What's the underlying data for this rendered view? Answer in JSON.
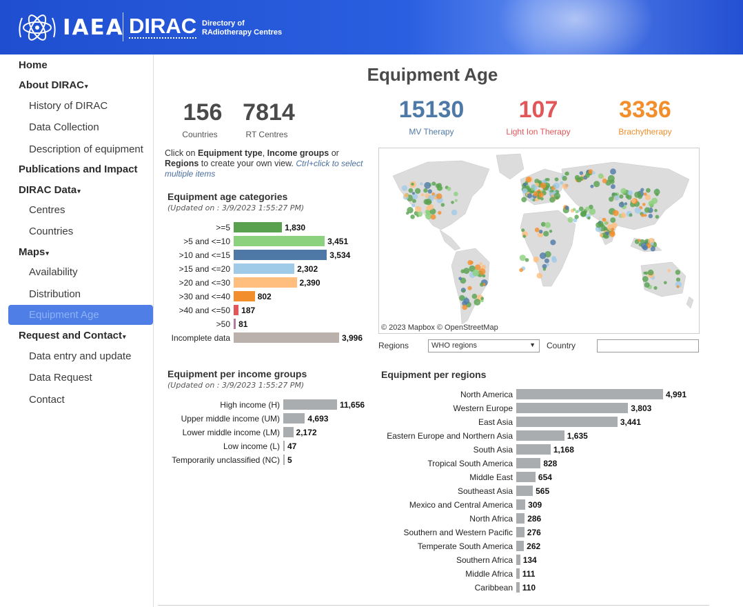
{
  "header": {
    "iaea": "IAEA",
    "dirac": "DIRAC",
    "tagline_1": "Directory of",
    "tagline_2": "RAdiotherapy Centres"
  },
  "sidebar": {
    "home": "Home",
    "about": "About DIRAC",
    "history": "History of DIRAC",
    "data_collection": "Data Collection",
    "description": "Description of equipment",
    "publications": "Publications and Impact",
    "dirac_data": "DIRAC Data",
    "centres": "Centres",
    "countries": "Countries",
    "maps": "Maps",
    "availability": "Availability",
    "distribution": "Distribution",
    "equipment_age": "Equipment Age",
    "request": "Request and Contact",
    "data_entry": "Data entry and update",
    "data_request": "Data Request",
    "contact": "Contact",
    "caret": "▾"
  },
  "page": {
    "title": "Equipment Age",
    "kpi": {
      "countries_val": "156",
      "countries_lbl": "Countries",
      "centres_val": "7814",
      "centres_lbl": "RT Centres",
      "mv_val": "15130",
      "mv_lbl": "MV Therapy",
      "ion_val": "107",
      "ion_lbl": "Light Ion Therapy",
      "brachy_val": "3336",
      "brachy_lbl": "Brachytherapy"
    },
    "instructions": {
      "p1": "Click on ",
      "b1": "Equipment type",
      "p2": ", ",
      "b2": "Income groups",
      "p3": " or ",
      "b3": "Regions",
      "p4": " to create your own view. ",
      "hint": "Ctrl+click to select multiple items"
    },
    "map_attribution": "© 2023 Mapbox  © OpenStreetMap",
    "filters": {
      "regions_label": "Regions",
      "regions_value": "WHO regions",
      "country_label": "Country"
    }
  },
  "colors": {
    "mv": "#4e79a7",
    "ion": "#e15759",
    "brachy": "#f28e2b",
    "kpi_dark": "#4a4a4a",
    "bar_gray": "#a9adaf"
  },
  "chart_data": [
    {
      "type": "bar",
      "title": "Equipment age categories",
      "subtitle": "(Updated on : 3/9/2023 1:55:27 PM)",
      "categories": [
        ">=5",
        ">5 and <=10",
        ">10 and <=15",
        ">15 and <=20",
        ">20 and <=30",
        ">30 and <=40",
        ">40 and <=50",
        ">50",
        "Incomplete data"
      ],
      "values": [
        1830,
        3451,
        3534,
        2302,
        2390,
        802,
        187,
        81,
        3996
      ],
      "labels": [
        "1,830",
        "3,451",
        "3,534",
        "2,302",
        "2,390",
        "802",
        "187",
        "81",
        "3,996"
      ],
      "colors": [
        "#59a14f",
        "#8cd17d",
        "#4e79a7",
        "#a0cbe8",
        "#ffbe7d",
        "#f28e2b",
        "#e15759",
        "#b07aa1",
        "#bab0ac"
      ]
    },
    {
      "type": "bar",
      "title": "Equipment per income groups",
      "subtitle": "(Updated on : 3/9/2023 1:55:27 PM)",
      "categories": [
        "High income (H)",
        "Upper middle income (UM)",
        "Lower middle income (LM)",
        "Low income (L)",
        "Temporarily unclassified (NC)"
      ],
      "values": [
        11656,
        4693,
        2172,
        47,
        5
      ],
      "labels": [
        "11,656",
        "4,693",
        "2,172",
        "47",
        "5"
      ]
    },
    {
      "type": "bar",
      "title": "Equipment per regions",
      "categories": [
        "North America",
        "Western Europe",
        "East Asia",
        "Eastern Europe and Northern Asia",
        "South Asia",
        "Tropical South America",
        "Middle East",
        "Southeast Asia",
        "Mexico and Central America",
        "North Africa",
        "Southern and Western Pacific",
        "Temperate South America",
        "Southern Africa",
        "Middle Africa",
        "Caribbean"
      ],
      "values": [
        4991,
        3803,
        3441,
        1635,
        1168,
        828,
        654,
        565,
        309,
        286,
        276,
        262,
        134,
        111,
        110
      ],
      "labels": [
        "4,991",
        "3,803",
        "3,441",
        "1,635",
        "1,168",
        "828",
        "654",
        "565",
        "309",
        "286",
        "276",
        "262",
        "134",
        "111",
        "110"
      ]
    }
  ]
}
